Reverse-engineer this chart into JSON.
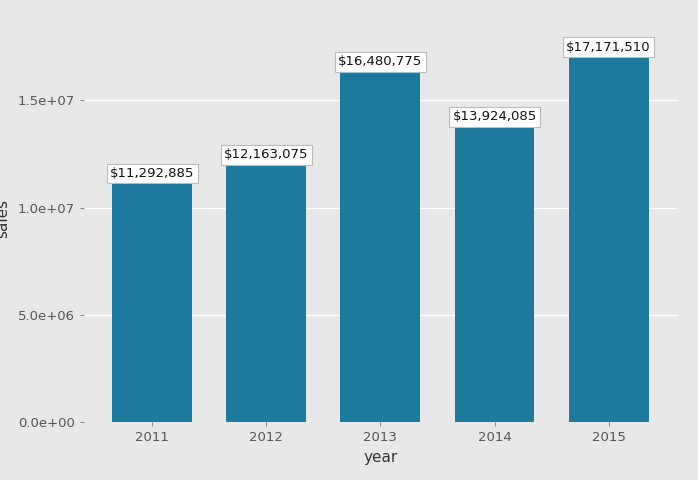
{
  "years": [
    2011,
    2012,
    2013,
    2014,
    2015
  ],
  "sales": [
    11292885,
    12163075,
    16480775,
    13924085,
    17171510
  ],
  "labels": [
    "$11,292,885",
    "$12,163,075",
    "$16,480,775",
    "$13,924,085",
    "$17,171,510"
  ],
  "bar_color": "#1c7a9c",
  "outer_background": "#e8e8e8",
  "panel_background": "#e8e8e8",
  "grid_color": "#ffffff",
  "xlabel": "year",
  "ylabel": "sales",
  "ylim_max": 19000000,
  "yticks": [
    0,
    5000000,
    10000000,
    15000000
  ],
  "bar_width": 0.7,
  "label_fontsize": 9.5,
  "axis_label_fontsize": 11,
  "tick_fontsize": 9.5,
  "xlim": [
    2010.4,
    2015.6
  ]
}
